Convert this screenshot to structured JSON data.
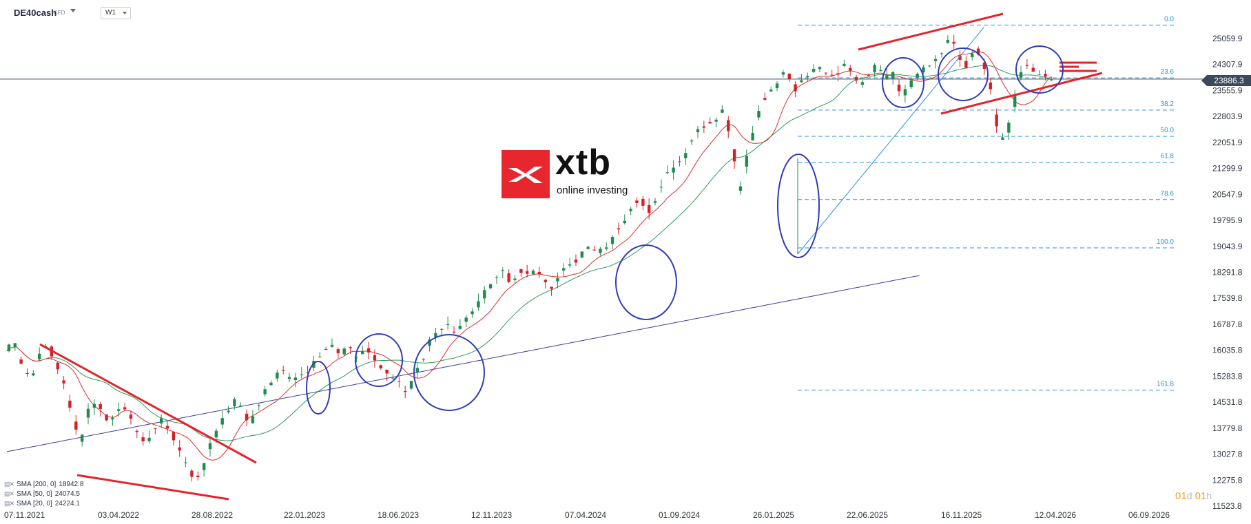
{
  "header": {
    "symbol": "DE40cash",
    "instrument_type": "CFD",
    "timeframe": "W1"
  },
  "branding": {
    "logo_text": "xtb",
    "logo_sub": "online investing"
  },
  "countdown": {
    "days": "01",
    "d": "d",
    "hours": "01",
    "h": "h"
  },
  "current_price": "23886.3",
  "legend": [
    {
      "label": "SMA [200, 0]",
      "value": "18942.8",
      "color": "#3d3f9a"
    },
    {
      "label": "SMA [50, 0]",
      "value": "24074.5",
      "color": "#2e9a5e"
    },
    {
      "label": "SMA [20, 0]",
      "value": "24224.1",
      "color": "#e02a2a"
    }
  ],
  "colors": {
    "bull": "#1f8c4e",
    "bear": "#d61f26",
    "fib": "#2a8fe0",
    "trendline": "#e52229",
    "circle": "#2f3bb8",
    "price_line": "#3a4a5c"
  },
  "chart_data": {
    "type": "candlestick",
    "y_axis_labels": [
      "25059.9",
      "24307.9",
      "23555.9",
      "22803.9",
      "22051.9",
      "21299.9",
      "20547.9",
      "19795.9",
      "19043.9",
      "18291.8",
      "17539.8",
      "16787.8",
      "16035.8",
      "15283.8",
      "14531.8",
      "13779.8",
      "13027.8",
      "12275.8",
      "11523.8"
    ],
    "x_axis_labels": [
      "07.11.2021",
      "03.04.2022",
      "28.08.2022",
      "22.01.2023",
      "18.06.2023",
      "12.11.2023",
      "07.04.2024",
      "01.09.2024",
      "26.01.2025",
      "22.06.2025",
      "16.11.2025",
      "12.04.2026",
      "06.09.2026"
    ],
    "fibonacci": [
      {
        "level": "0.0",
        "price": 25450
      },
      {
        "level": "23.6",
        "price": 23920
      },
      {
        "level": "38.2",
        "price": 22990
      },
      {
        "level": "50.0",
        "price": 22230
      },
      {
        "level": "61.8",
        "price": 21480
      },
      {
        "level": "78.6",
        "price": 20400
      },
      {
        "level": "100.0",
        "price": 19000
      },
      {
        "level": "161.8",
        "price": 14880
      }
    ],
    "path": [
      [
        0,
        16100
      ],
      [
        4,
        16200
      ],
      [
        8,
        15400
      ],
      [
        12,
        15250
      ],
      [
        16,
        15900
      ],
      [
        20,
        16250
      ],
      [
        24,
        15600
      ],
      [
        28,
        15000
      ],
      [
        32,
        14200
      ],
      [
        36,
        13400
      ],
      [
        40,
        14300
      ],
      [
        44,
        14600
      ],
      [
        48,
        14100
      ],
      [
        52,
        14050
      ],
      [
        56,
        14500
      ],
      [
        60,
        14200
      ],
      [
        64,
        13600
      ],
      [
        68,
        13300
      ],
      [
        72,
        13700
      ],
      [
        76,
        14050
      ],
      [
        80,
        13700
      ],
      [
        84,
        13300
      ],
      [
        88,
        12700
      ],
      [
        92,
        12350
      ],
      [
        96,
        12500
      ],
      [
        100,
        13300
      ],
      [
        104,
        13900
      ],
      [
        108,
        14200
      ],
      [
        112,
        14550
      ],
      [
        116,
        14300
      ],
      [
        120,
        13900
      ],
      [
        124,
        14500
      ],
      [
        128,
        15000
      ],
      [
        132,
        15300
      ],
      [
        136,
        15450
      ],
      [
        140,
        15100
      ],
      [
        144,
        15250
      ],
      [
        148,
        15350
      ],
      [
        152,
        15800
      ],
      [
        156,
        16000
      ],
      [
        160,
        16150
      ],
      [
        164,
        15900
      ],
      [
        168,
        16100
      ],
      [
        172,
        15800
      ],
      [
        176,
        16050
      ],
      [
        180,
        15900
      ],
      [
        184,
        15500
      ],
      [
        188,
        15350
      ],
      [
        192,
        15200
      ],
      [
        196,
        14800
      ],
      [
        200,
        15200
      ],
      [
        204,
        15700
      ],
      [
        208,
        16300
      ],
      [
        212,
        16700
      ],
      [
        216,
        16750
      ],
      [
        220,
        16600
      ],
      [
        224,
        16800
      ],
      [
        228,
        17100
      ],
      [
        232,
        17400
      ],
      [
        236,
        17800
      ],
      [
        240,
        18200
      ],
      [
        244,
        18350
      ],
      [
        248,
        18000
      ],
      [
        252,
        18400
      ],
      [
        256,
        18200
      ],
      [
        260,
        18300
      ],
      [
        264,
        18100
      ],
      [
        268,
        17800
      ],
      [
        272,
        18200
      ],
      [
        276,
        18500
      ],
      [
        280,
        18600
      ],
      [
        284,
        18900
      ],
      [
        288,
        19000
      ],
      [
        292,
        18900
      ],
      [
        296,
        19000
      ],
      [
        300,
        19500
      ],
      [
        304,
        19800
      ],
      [
        308,
        20300
      ],
      [
        312,
        20350
      ],
      [
        316,
        20100
      ],
      [
        320,
        20550
      ],
      [
        324,
        21100
      ],
      [
        328,
        21300
      ],
      [
        332,
        21550
      ],
      [
        336,
        22000
      ],
      [
        340,
        22400
      ],
      [
        344,
        22600
      ],
      [
        348,
        22700
      ],
      [
        352,
        22950
      ],
      [
        356,
        22300
      ],
      [
        360,
        20600
      ],
      [
        364,
        21600
      ],
      [
        368,
        22500
      ],
      [
        372,
        23300
      ],
      [
        376,
        23500
      ],
      [
        380,
        23900
      ],
      [
        384,
        24100
      ],
      [
        388,
        23600
      ],
      [
        392,
        24000
      ],
      [
        396,
        24100
      ],
      [
        400,
        24200
      ],
      [
        404,
        23900
      ],
      [
        408,
        24000
      ],
      [
        412,
        24300
      ],
      [
        416,
        24100
      ],
      [
        420,
        23750
      ],
      [
        424,
        24050
      ],
      [
        428,
        24300
      ],
      [
        432,
        23900
      ],
      [
        436,
        24000
      ],
      [
        440,
        23400
      ],
      [
        444,
        23700
      ],
      [
        448,
        24050
      ],
      [
        452,
        24200
      ],
      [
        456,
        24350
      ],
      [
        460,
        24600
      ],
      [
        464,
        25200
      ],
      [
        468,
        24500
      ],
      [
        472,
        24300
      ],
      [
        476,
        24850
      ],
      [
        480,
        24300
      ],
      [
        484,
        23600
      ],
      [
        488,
        22100
      ],
      [
        492,
        22300
      ],
      [
        496,
        23400
      ],
      [
        500,
        24300
      ],
      [
        504,
        24200
      ],
      [
        508,
        24050
      ],
      [
        512,
        23890
      ]
    ]
  }
}
